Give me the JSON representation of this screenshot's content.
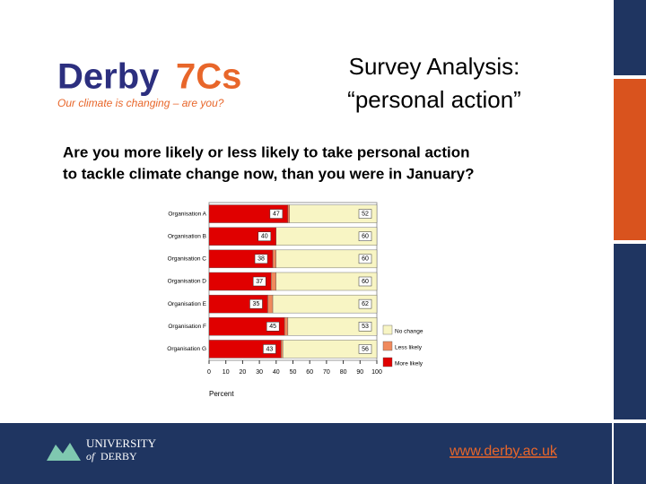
{
  "header": {
    "logo_name": "Derby",
    "logo_number": "7Cs",
    "logo_tagline": "Our climate is changing – are you?",
    "title_lines": [
      "Survey Analysis:",
      "“personal action”"
    ]
  },
  "question_lines": [
    "Are you more likely or less likely to take personal action",
    "to tackle climate change now, than you were in January?"
  ],
  "chart_data": {
    "type": "bar",
    "orientation": "horizontal",
    "stacked": true,
    "categories": [
      "Organisation A",
      "Organisation B",
      "Organisation C",
      "Organisation D",
      "Organisation E",
      "Organisation F",
      "Organisation G"
    ],
    "series": [
      {
        "name": "More likely",
        "color": "#e00000",
        "values": [
          47,
          40,
          38,
          37,
          35,
          45,
          43
        ],
        "show_labels": true
      },
      {
        "name": "Less likely",
        "color": "#f08a5d",
        "values": [
          1,
          0,
          2,
          3,
          3,
          2,
          1
        ],
        "show_labels": false
      },
      {
        "name": "No change",
        "color": "#f8f5c4",
        "values": [
          52,
          60,
          60,
          60,
          62,
          53,
          56
        ],
        "show_labels": true
      }
    ],
    "xlim": [
      0,
      100
    ],
    "xticks": [
      0,
      10,
      20,
      30,
      40,
      50,
      60,
      70,
      80,
      90,
      100
    ],
    "xlabel": "Percent"
  },
  "footer": {
    "university_line1": "UNIVERSITY",
    "university_of": "of",
    "university_line2": "DERBY",
    "url": "www.derby.ac.uk"
  }
}
